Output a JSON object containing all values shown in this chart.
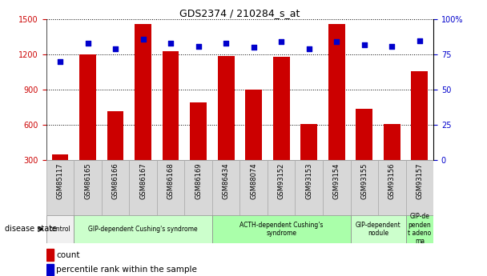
{
  "title": "GDS2374 / 210284_s_at",
  "samples": [
    "GSM85117",
    "GSM86165",
    "GSM86166",
    "GSM86167",
    "GSM86168",
    "GSM86169",
    "GSM86434",
    "GSM88074",
    "GSM93152",
    "GSM93153",
    "GSM93154",
    "GSM93155",
    "GSM93156",
    "GSM93157"
  ],
  "counts": [
    350,
    1200,
    720,
    1460,
    1230,
    790,
    1190,
    900,
    1180,
    610,
    1460,
    740,
    610,
    1060
  ],
  "percentiles": [
    70,
    83,
    79,
    86,
    83,
    81,
    83,
    80,
    84,
    79,
    84,
    82,
    81,
    85
  ],
  "ylim_left": [
    300,
    1500
  ],
  "ylim_right": [
    0,
    100
  ],
  "yticks_left": [
    300,
    600,
    900,
    1200,
    1500
  ],
  "yticks_right": [
    0,
    25,
    50,
    75,
    100
  ],
  "bar_color": "#cc0000",
  "dot_color": "#0000cc",
  "groups": [
    {
      "label": "control",
      "indices": [
        0
      ],
      "color": "#f0f0f0"
    },
    {
      "label": "GIP-dependent Cushing's syndrome",
      "indices": [
        1,
        2,
        3,
        4,
        5
      ],
      "color": "#ccffcc"
    },
    {
      "label": "ACTH-dependent Cushing's\nsyndrome",
      "indices": [
        6,
        7,
        8,
        9,
        10
      ],
      "color": "#aaffaa"
    },
    {
      "label": "GIP-dependent\nnodule",
      "indices": [
        11,
        12
      ],
      "color": "#ccffcc"
    },
    {
      "label": "GIP-de\npenden\nt adeno\nma",
      "indices": [
        13
      ],
      "color": "#aaffaa"
    }
  ],
  "disease_state_label": "disease state",
  "legend_count_label": "count",
  "legend_percentile_label": "percentile rank within the sample",
  "grid_color": "#000000",
  "background_color": "#ffffff",
  "tick_label_color_left": "#cc0000",
  "tick_label_color_right": "#0000cc"
}
